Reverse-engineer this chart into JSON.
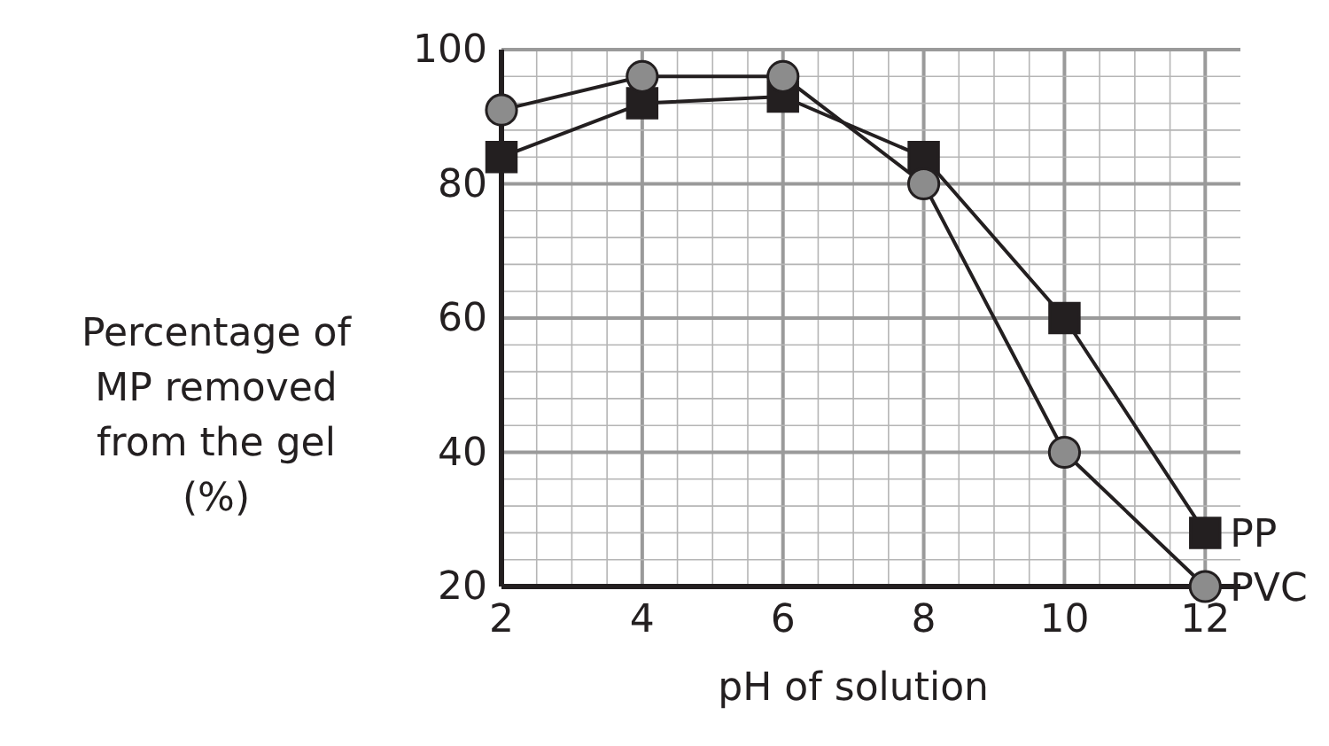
{
  "chart_data": {
    "type": "line",
    "xlabel": "pH of solution",
    "ylabel": "Percentage of\nMP removed\nfrom the gel\n(%)",
    "x": [
      2,
      4,
      6,
      8,
      10,
      12
    ],
    "series": [
      {
        "name": "PP",
        "color": "#231f20",
        "marker": "square",
        "values": [
          84,
          92,
          93,
          84,
          60,
          28
        ]
      },
      {
        "name": "PVC",
        "color": "#8c8c8c",
        "marker": "circle",
        "values": [
          91,
          96,
          96,
          80,
          40,
          20
        ]
      }
    ],
    "xlim": [
      2,
      12.5
    ],
    "ylim": [
      20,
      100
    ],
    "xticks": [
      2,
      {
        "value": 2.5,
        "label": null
      },
      {
        "value": 3,
        "label": null
      },
      {
        "value": 3.5,
        "label": null
      },
      4,
      {
        "value": 4.5,
        "label": null
      },
      {
        "value": 5,
        "label": null
      },
      {
        "value": 5.5,
        "label": null
      },
      6,
      {
        "value": 6.5,
        "label": null
      },
      {
        "value": 7,
        "label": null
      },
      {
        "value": 7.5,
        "label": null
      },
      8,
      {
        "value": 8.5,
        "label": null
      },
      {
        "value": 9,
        "label": null
      },
      {
        "value": 9.5,
        "label": null
      },
      10,
      {
        "value": 10.5,
        "label": null
      },
      {
        "value": 11,
        "label": null
      },
      {
        "value": 11.5,
        "label": null
      },
      12
    ],
    "yticks": [
      20,
      {
        "value": 24,
        "label": null
      },
      {
        "value": 28,
        "label": null
      },
      {
        "value": 32,
        "label": null
      },
      {
        "value": 36,
        "label": null
      },
      40,
      {
        "value": 44,
        "label": null
      },
      {
        "value": 48,
        "label": null
      },
      {
        "value": 52,
        "label": null
      },
      {
        "value": 56,
        "label": null
      },
      60,
      {
        "value": 64,
        "label": null
      },
      {
        "value": 68,
        "label": null
      },
      {
        "value": 72,
        "label": null
      },
      {
        "value": 76,
        "label": null
      },
      80,
      {
        "value": 84,
        "label": null
      },
      {
        "value": 88,
        "label": null
      },
      {
        "value": 92,
        "label": null
      },
      {
        "value": 96,
        "label": null
      },
      100
    ],
    "grid": true,
    "line_style": "solid"
  }
}
